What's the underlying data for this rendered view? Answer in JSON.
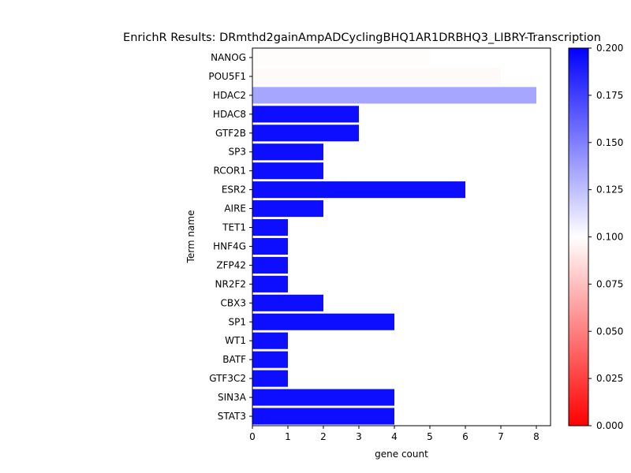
{
  "chart_data": {
    "type": "bar",
    "orientation": "horizontal",
    "title": "EnrichR Results: DRmthd2gainAmpADCyclingBHQ1AR1DRBHQ3_LIBRY-Transcription",
    "xlabel": "gene count",
    "ylabel": "Term name",
    "xlim": [
      0,
      8.4
    ],
    "xticks": [
      0,
      1,
      2,
      3,
      4,
      5,
      6,
      7,
      8
    ],
    "categories": [
      "NANOG",
      "POU5F1",
      "HDAC2",
      "HDAC8",
      "GTF2B",
      "SP3",
      "RCOR1",
      "ESR2",
      "AIRE",
      "TET1",
      "HNF4G",
      "ZFP42",
      "NR2F2",
      "CBX3",
      "SP1",
      "WT1",
      "BATF",
      "GTF3C2",
      "SIN3A",
      "STAT3"
    ],
    "values": [
      5,
      7,
      8,
      3,
      3,
      2,
      2,
      6,
      2,
      1,
      1,
      1,
      1,
      2,
      4,
      1,
      1,
      1,
      4,
      4
    ],
    "color_values": [
      0.099,
      0.098,
      0.135,
      0.195,
      0.195,
      0.195,
      0.195,
      0.195,
      0.195,
      0.195,
      0.195,
      0.195,
      0.195,
      0.195,
      0.195,
      0.195,
      0.195,
      0.195,
      0.195,
      0.195
    ],
    "colorbar": {
      "colormap": "bwr_r",
      "range": [
        0.0,
        0.2
      ],
      "ticks": [
        "0.000",
        "0.025",
        "0.050",
        "0.075",
        "0.100",
        "0.125",
        "0.150",
        "0.175",
        "0.200"
      ],
      "low_color": "#ff0000",
      "mid_color": "#ffffff",
      "high_color": "#0000ff"
    },
    "grid": false,
    "legend": "none"
  }
}
